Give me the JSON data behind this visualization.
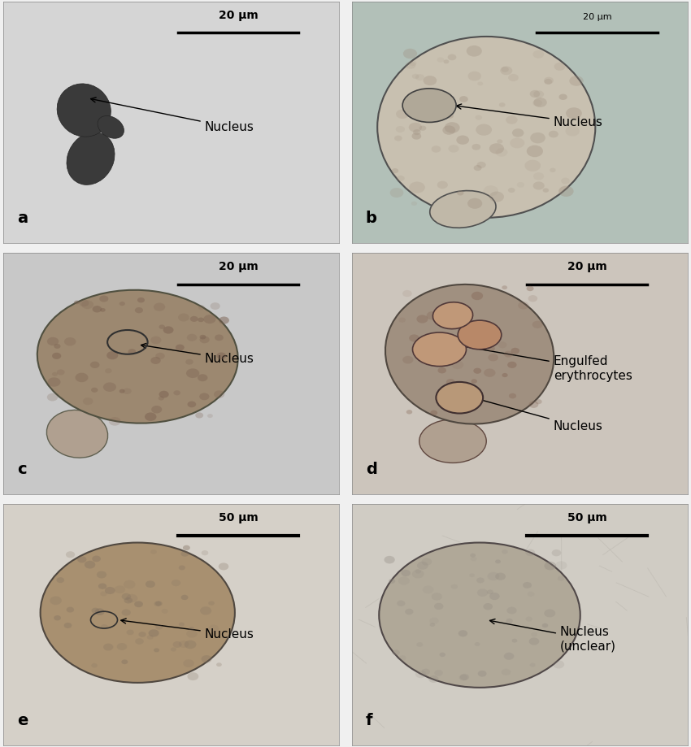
{
  "figure_bg": "#f0f0f0",
  "panel_labels": [
    "a",
    "b",
    "c",
    "d",
    "e",
    "f"
  ],
  "panel_bg_colors": [
    "#d8d8d8",
    "#b8c8c0",
    "#c8c8c8",
    "#d0c8c0",
    "#d8d4cc",
    "#d4d0c8"
  ],
  "scalebars": {
    "a": "20 μm",
    "b": "20 μm",
    "c": "20 μm",
    "d": "20 μm",
    "e": "50 μm",
    "f": "50 μm"
  },
  "font_size_label": 14,
  "font_size_annotation": 11,
  "font_size_scalebar": 10
}
